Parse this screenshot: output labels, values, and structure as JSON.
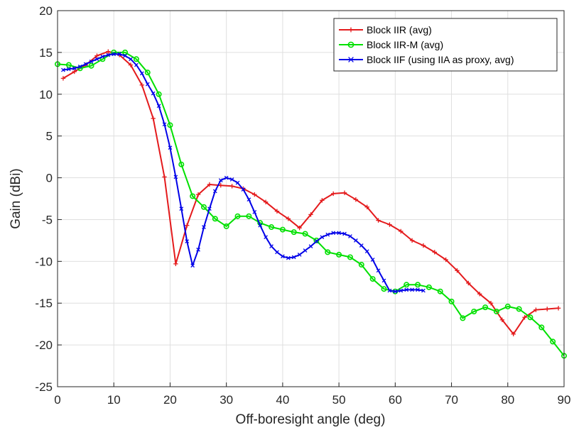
{
  "chart_data": {
    "type": "line",
    "xlabel": "Off-boresight angle (deg)",
    "ylabel": "Gain (dBi)",
    "xlim": [
      0,
      90
    ],
    "ylim": [
      -25,
      20
    ],
    "xticks": [
      "0",
      "10",
      "20",
      "30",
      "40",
      "50",
      "60",
      "70",
      "80",
      "90"
    ],
    "yticks": [
      "20",
      "15",
      "10",
      "5",
      "0",
      "-5",
      "-10",
      "-15",
      "-20",
      "-25"
    ],
    "grid": true,
    "legend_position": "top-right",
    "series": [
      {
        "name": "Block IIR (avg)",
        "color": "#e41a1c",
        "marker": "plus",
        "x": [
          1,
          3,
          5,
          7,
          9,
          11,
          13,
          15,
          17,
          19,
          21,
          23,
          25,
          27,
          29,
          31,
          33,
          35,
          37,
          39,
          41,
          43,
          45,
          47,
          49,
          51,
          53,
          55,
          57,
          59,
          61,
          63,
          65,
          67,
          69,
          71,
          73,
          75,
          77,
          79,
          81,
          83,
          85,
          87,
          89
        ],
        "y": [
          11.9,
          12.7,
          13.5,
          14.6,
          15.1,
          14.7,
          13.5,
          11.1,
          7.1,
          0.1,
          -10.3,
          -5.7,
          -2.0,
          -0.8,
          -0.9,
          -1.0,
          -1.3,
          -2.0,
          -2.9,
          -4.0,
          -4.9,
          -6.0,
          -4.4,
          -2.7,
          -1.9,
          -1.8,
          -2.6,
          -3.5,
          -5.1,
          -5.6,
          -6.4,
          -7.5,
          -8.1,
          -8.9,
          -9.8,
          -11.1,
          -12.6,
          -13.9,
          -15.0,
          -17.0,
          -18.7,
          -16.7,
          -15.8,
          -15.7,
          -15.6
        ]
      },
      {
        "name": "Block IIR-M (avg)",
        "color": "#00e000",
        "marker": "circle",
        "x": [
          0,
          2,
          4,
          6,
          8,
          10,
          12,
          14,
          16,
          18,
          20,
          22,
          24,
          26,
          28,
          30,
          32,
          34,
          36,
          38,
          40,
          42,
          44,
          46,
          48,
          50,
          52,
          54,
          56,
          58,
          60,
          62,
          64,
          66,
          68,
          70,
          72,
          74,
          76,
          78,
          80,
          82,
          84,
          86,
          88,
          90
        ],
        "y": [
          13.6,
          13.5,
          13.1,
          13.4,
          14.2,
          15.0,
          15.0,
          14.2,
          12.6,
          10.0,
          6.3,
          1.6,
          -2.2,
          -3.5,
          -4.9,
          -5.8,
          -4.6,
          -4.6,
          -5.4,
          -5.9,
          -6.2,
          -6.5,
          -6.7,
          -7.5,
          -8.9,
          -9.2,
          -9.5,
          -10.4,
          -12.1,
          -13.3,
          -13.6,
          -12.8,
          -12.8,
          -13.1,
          -13.6,
          -14.8,
          -16.8,
          -16.0,
          -15.5,
          -16.0,
          -15.4,
          -15.7,
          -16.7,
          -17.9,
          -19.6,
          -21.3
        ]
      },
      {
        "name": "Block IIF (using IIA as proxy, avg)",
        "color": "#0000e8",
        "marker": "x",
        "x": [
          1,
          2,
          3,
          4,
          5,
          6,
          7,
          8,
          9,
          10,
          11,
          12,
          13,
          14,
          15,
          16,
          17,
          18,
          19,
          20,
          21,
          22,
          23,
          24,
          25,
          26,
          27,
          28,
          29,
          30,
          31,
          32,
          33,
          34,
          35,
          36,
          37,
          38,
          39,
          40,
          41,
          42,
          43,
          44,
          45,
          46,
          47,
          48,
          49,
          50,
          51,
          52,
          53,
          54,
          55,
          56,
          57,
          58,
          59,
          60,
          61,
          62,
          63,
          64,
          65
        ],
        "y": [
          12.9,
          13.0,
          13.1,
          13.3,
          13.6,
          13.9,
          14.2,
          14.5,
          14.7,
          14.8,
          14.8,
          14.6,
          14.2,
          13.5,
          12.5,
          11.2,
          10.1,
          8.6,
          6.4,
          3.6,
          0.1,
          -3.7,
          -7.6,
          -10.5,
          -8.6,
          -5.9,
          -3.7,
          -1.6,
          -0.3,
          0.0,
          -0.2,
          -0.6,
          -1.4,
          -2.6,
          -4.1,
          -5.7,
          -7.1,
          -8.2,
          -8.9,
          -9.4,
          -9.6,
          -9.5,
          -9.2,
          -8.7,
          -8.2,
          -7.6,
          -7.1,
          -6.8,
          -6.6,
          -6.6,
          -6.7,
          -7.0,
          -7.5,
          -8.1,
          -8.8,
          -9.8,
          -11.1,
          -12.3,
          -13.5,
          -13.6,
          -13.5,
          -13.4,
          -13.4,
          -13.4,
          -13.5
        ]
      }
    ]
  }
}
